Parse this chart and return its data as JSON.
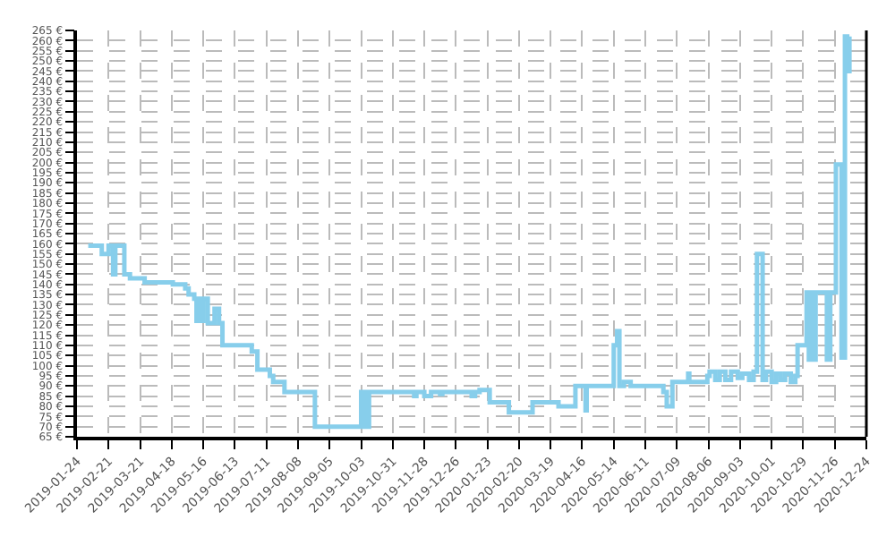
{
  "chart_data": {
    "type": "step",
    "color": "#87ceeb",
    "grid": true,
    "marker": "none",
    "line_style": "solid",
    "x": [
      "2019-02-03",
      "2019-02-15",
      "2019-02-21",
      "2019-02-25",
      "2019-02-27",
      "2019-03-07",
      "2019-03-12",
      "2019-03-25",
      "2019-04-19",
      "2019-04-30",
      "2019-05-03",
      "2019-05-08",
      "2019-05-10",
      "2019-05-12",
      "2019-05-14",
      "2019-05-16",
      "2019-05-20",
      "2019-05-26",
      "2019-05-30",
      "2019-06-02",
      "2019-06-28",
      "2019-07-03",
      "2019-07-14",
      "2019-07-17",
      "2019-07-27",
      "2019-08-23",
      "2019-10-03",
      "2019-10-05",
      "2019-10-07",
      "2019-10-09",
      "2019-10-10",
      "2019-11-19",
      "2019-11-21",
      "2019-11-28",
      "2019-12-04",
      "2019-12-12",
      "2019-12-14",
      "2020-01-09",
      "2020-01-12",
      "2020-01-16",
      "2020-01-25",
      "2020-02-11",
      "2020-03-03",
      "2020-03-26",
      "2020-04-10",
      "2020-04-19",
      "2020-04-20",
      "2020-05-14",
      "2020-05-17",
      "2020-05-19",
      "2020-05-23",
      "2020-05-29",
      "2020-06-27",
      "2020-06-30",
      "2020-07-05",
      "2020-07-19",
      "2020-07-20",
      "2020-08-05",
      "2020-08-07",
      "2020-08-12",
      "2020-08-16",
      "2020-08-21",
      "2020-08-26",
      "2020-09-01",
      "2020-09-05",
      "2020-09-11",
      "2020-09-15",
      "2020-09-18",
      "2020-09-23",
      "2020-09-26",
      "2020-10-01",
      "2020-10-05",
      "2020-10-09",
      "2020-10-13",
      "2020-10-18",
      "2020-10-22",
      "2020-10-24",
      "2020-11-01",
      "2020-11-03",
      "2020-11-05",
      "2020-11-07",
      "2020-11-09",
      "2020-11-19",
      "2020-11-22",
      "2020-11-27",
      "2020-12-02",
      "2020-12-05",
      "2020-12-07",
      "2020-12-09"
    ],
    "values": [
      159,
      155,
      159,
      145,
      159,
      145,
      143,
      141,
      140,
      138,
      135,
      133,
      122,
      133,
      122,
      133,
      121,
      128,
      121,
      110,
      107,
      98,
      95,
      92,
      87,
      70,
      87,
      70,
      87,
      70,
      87,
      85,
      87,
      85,
      87,
      86,
      87,
      85,
      87,
      88,
      82,
      77,
      82,
      80,
      90,
      78,
      90,
      110,
      117,
      90,
      92,
      90,
      87,
      80,
      92,
      96,
      92,
      95,
      97,
      93,
      97,
      93,
      97,
      94,
      96,
      93,
      97,
      155,
      93,
      97,
      92,
      96,
      93,
      96,
      92,
      95,
      110,
      136,
      103,
      136,
      103,
      136,
      103,
      136,
      199,
      104,
      262,
      245,
      262
    ],
    "xlim": [
      "2019-01-24",
      "2020-12-24"
    ],
    "xticks": [
      "2019-01-24",
      "2019-02-21",
      "2019-03-21",
      "2019-04-18",
      "2019-05-16",
      "2019-06-13",
      "2019-07-11",
      "2019-08-08",
      "2019-09-05",
      "2019-10-03",
      "2019-10-31",
      "2019-11-28",
      "2019-12-26",
      "2020-01-23",
      "2020-02-20",
      "2020-03-19",
      "2020-04-16",
      "2020-05-14",
      "2020-06-11",
      "2020-07-09",
      "2020-08-06",
      "2020-09-03",
      "2020-10-01",
      "2020-10-29",
      "2020-11-26",
      "2020-12-24"
    ],
    "ylim": [
      65,
      265
    ],
    "yticks": [
      {
        "value": 65,
        "label": "65 €"
      },
      {
        "value": 70,
        "label": "70 €"
      },
      {
        "value": 75,
        "label": "75 €"
      },
      {
        "value": 80,
        "label": "80 €"
      },
      {
        "value": 85,
        "label": "85 €"
      },
      {
        "value": 90,
        "label": "90 €"
      },
      {
        "value": 95,
        "label": "95 €"
      },
      {
        "value": 100,
        "label": "100 €"
      },
      {
        "value": 105,
        "label": "105 €"
      },
      {
        "value": 110,
        "label": "110 €"
      },
      {
        "value": 115,
        "label": "115 €"
      },
      {
        "value": 120,
        "label": "120 €"
      },
      {
        "value": 125,
        "label": "125 €"
      },
      {
        "value": 130,
        "label": "130 €"
      },
      {
        "value": 135,
        "label": "135 €"
      },
      {
        "value": 140,
        "label": "140 €"
      },
      {
        "value": 145,
        "label": "145 €"
      },
      {
        "value": 150,
        "label": "150 €"
      },
      {
        "value": 155,
        "label": "155 €"
      },
      {
        "value": 160,
        "label": "160 €"
      },
      {
        "value": 165,
        "label": "165 €"
      },
      {
        "value": 170,
        "label": "170 €"
      },
      {
        "value": 175,
        "label": "175 €"
      },
      {
        "value": 180,
        "label": "180 €"
      },
      {
        "value": 185,
        "label": "185 €"
      },
      {
        "value": 190,
        "label": "190 €"
      },
      {
        "value": 195,
        "label": "195 €"
      },
      {
        "value": 200,
        "label": "200 €"
      },
      {
        "value": 205,
        "label": "205 €"
      },
      {
        "value": 210,
        "label": "210 €"
      },
      {
        "value": 215,
        "label": "215 €"
      },
      {
        "value": 220,
        "label": "220 €"
      },
      {
        "value": 225,
        "label": "225 €"
      },
      {
        "value": 230,
        "label": "230 €"
      },
      {
        "value": 235,
        "label": "235 €"
      },
      {
        "value": 240,
        "label": "240 €"
      },
      {
        "value": 245,
        "label": "245 €"
      },
      {
        "value": 250,
        "label": "250 €"
      },
      {
        "value": 255,
        "label": "255 €"
      },
      {
        "value": 260,
        "label": "260 €"
      },
      {
        "value": 265,
        "label": "265 €"
      }
    ]
  }
}
